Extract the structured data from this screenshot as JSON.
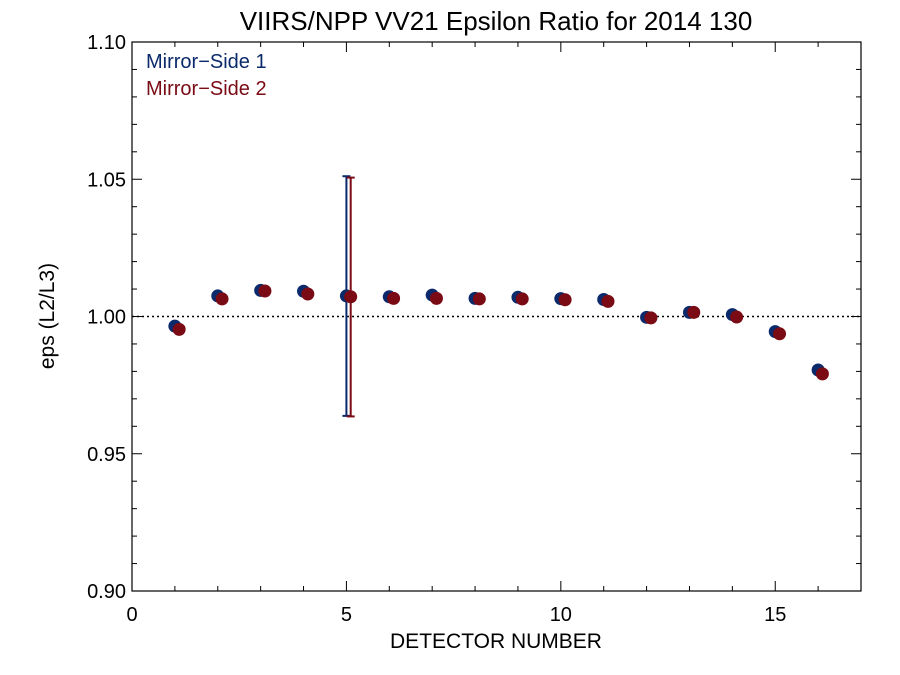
{
  "chart_data": {
    "type": "scatter",
    "title": "VIIRS/NPP VV21 Epsilon Ratio for 2014 130",
    "xlabel": "DETECTOR NUMBER",
    "ylabel": "eps (L2/L3)",
    "xlim": [
      0,
      17
    ],
    "ylim": [
      0.9,
      1.1
    ],
    "x_ticks": [
      0,
      5,
      10,
      15
    ],
    "y_ticks": [
      0.9,
      0.95,
      1.0,
      1.05,
      1.1
    ],
    "x_tick_labels": [
      "0",
      "5",
      "10",
      "15"
    ],
    "y_tick_labels": [
      "0.90",
      "0.95",
      "1.00",
      "1.05",
      "1.10"
    ],
    "reference_line": {
      "y": 1.0,
      "style": "dotted"
    },
    "legend_position": "top-left",
    "series": [
      {
        "name": "Mirror−Side 1",
        "color": "#0b2a6b",
        "x": [
          1,
          2,
          3,
          4,
          5,
          6,
          7,
          8,
          9,
          10,
          11,
          12,
          13,
          14,
          15,
          16
        ],
        "y": [
          0.9965,
          1.0075,
          1.0095,
          1.0092,
          1.0075,
          1.0072,
          1.0078,
          1.0066,
          1.007,
          1.0065,
          1.0062,
          0.9997,
          1.0015,
          1.0007,
          0.9945,
          0.9805
        ],
        "error_bars": [
          {
            "x": 5,
            "low": 0.9638,
            "high": 1.0511
          }
        ]
      },
      {
        "name": "Mirror−Side 2",
        "color": "#7a0a14",
        "x": [
          1.1,
          2.1,
          3.1,
          4.1,
          5.1,
          6.1,
          7.1,
          8.1,
          9.1,
          10.1,
          11.1,
          12.1,
          13.1,
          14.1,
          15.1,
          16.1
        ],
        "y": [
          0.9953,
          1.0064,
          1.0093,
          1.0082,
          1.0072,
          1.0066,
          1.0066,
          1.0064,
          1.0064,
          1.0061,
          1.0055,
          0.9995,
          1.0015,
          0.9998,
          0.9937,
          0.9791
        ],
        "error_bars": [
          {
            "x": 5.1,
            "low": 0.9636,
            "high": 1.0506
          }
        ]
      }
    ]
  }
}
